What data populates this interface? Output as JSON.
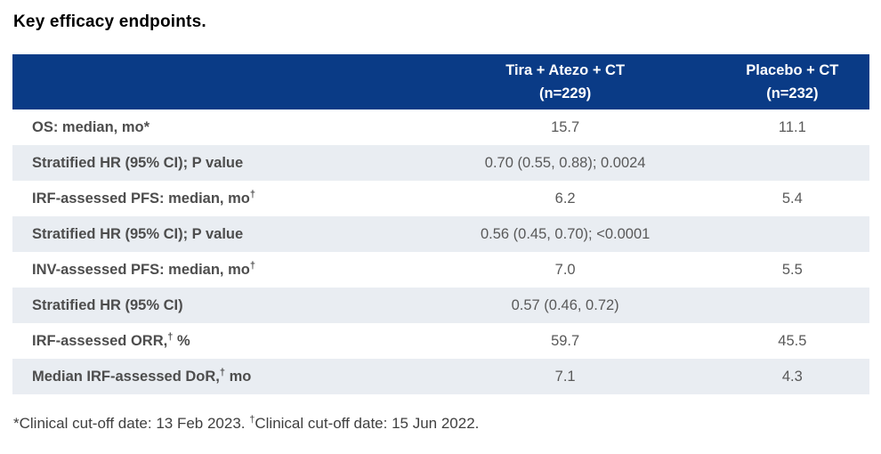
{
  "title": "Key efficacy endpoints.",
  "colors": {
    "header_bg": "#0a3b86",
    "header_text": "#ffffff",
    "shaded_row_bg": "#e9edf2",
    "label_text": "#4d4d4d",
    "value_text": "#595959"
  },
  "table": {
    "columns": [
      {
        "line1": "Tira + Atezo + CT",
        "line2": "(n=229)"
      },
      {
        "line1": "Placebo + CT",
        "line2": "(n=232)"
      }
    ],
    "rows": [
      {
        "label": {
          "text": "OS: median, mo*",
          "sup": "",
          "after": ""
        },
        "values": [
          "15.7",
          "11.1"
        ]
      },
      {
        "label": {
          "text": "Stratified HR (95% CI); P value",
          "sup": "",
          "after": ""
        },
        "values": [
          "0.70 (0.55, 0.88); 0.0024",
          ""
        ]
      },
      {
        "label": {
          "text": "IRF-assessed PFS: median, mo",
          "sup": "†",
          "after": ""
        },
        "values": [
          "6.2",
          "5.4"
        ]
      },
      {
        "label": {
          "text": "Stratified HR (95% CI); P value",
          "sup": "",
          "after": ""
        },
        "values": [
          "0.56 (0.45, 0.70); <0.0001",
          ""
        ]
      },
      {
        "label": {
          "text": "INV-assessed PFS: median, mo",
          "sup": "†",
          "after": ""
        },
        "values": [
          "7.0",
          "5.5"
        ]
      },
      {
        "label": {
          "text": "Stratified HR (95% CI)",
          "sup": "",
          "after": ""
        },
        "values": [
          "0.57 (0.46, 0.72)",
          ""
        ]
      },
      {
        "label": {
          "text": "IRF-assessed ORR,",
          "sup": "†",
          "after": " %"
        },
        "values": [
          "59.7",
          "45.5"
        ]
      },
      {
        "label": {
          "text": "Median IRF-assessed DoR,",
          "sup": "†",
          "after": " mo"
        },
        "values": [
          "7.1",
          "4.3"
        ]
      }
    ]
  },
  "footnote": {
    "part1": "*Clinical cut-off date: 13 Feb 2023. ",
    "sup": "†",
    "part2": "Clinical cut-off date: 15 Jun 2022."
  }
}
